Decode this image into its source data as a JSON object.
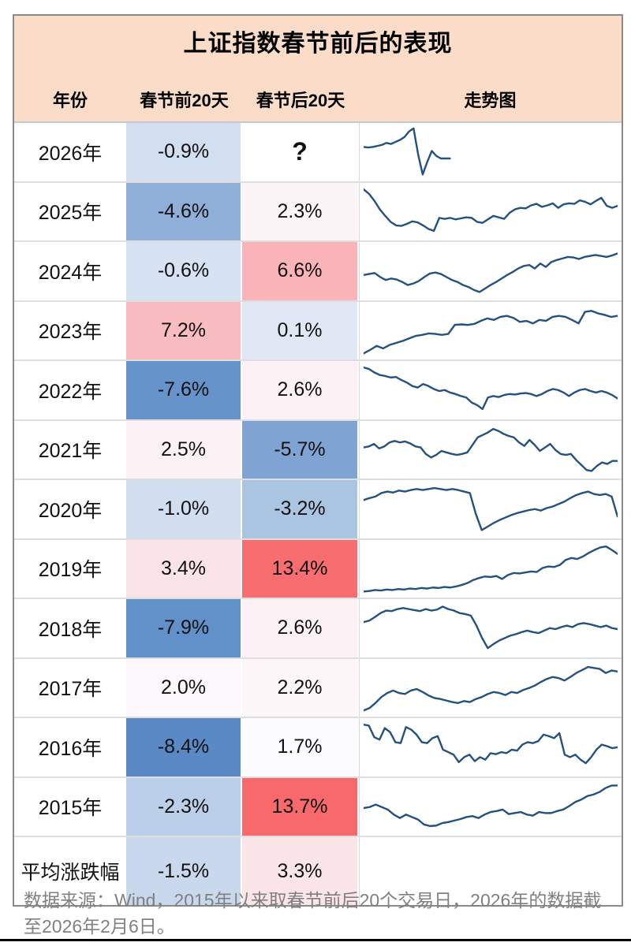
{
  "title": "上证指数春节前后的表现",
  "columns": {
    "year": "年份",
    "pre": "春节前20天",
    "post": "春节后20天",
    "chart": "走势图"
  },
  "rows": [
    {
      "year": "2026年",
      "pre": "-0.9%",
      "post": "?",
      "pre_bg": "#D2DFF0",
      "post_bg": "#FFFFFF"
    },
    {
      "year": "2025年",
      "pre": "-4.6%",
      "post": "2.3%",
      "pre_bg": "#8FAFD9",
      "post_bg": "#FCF5F8"
    },
    {
      "year": "2024年",
      "pre": "-0.6%",
      "post": "6.6%",
      "pre_bg": "#D7E2F2",
      "post_bg": "#FAB3B8"
    },
    {
      "year": "2023年",
      "pre": "7.2%",
      "post": "0.1%",
      "pre_bg": "#F9BCC0",
      "post_bg": "#E0E8F5"
    },
    {
      "year": "2022年",
      "pre": "-7.6%",
      "post": "2.6%",
      "pre_bg": "#6793CB",
      "post_bg": "#FCF1F4"
    },
    {
      "year": "2021年",
      "pre": "2.5%",
      "post": "-5.7%",
      "pre_bg": "#FCF2F5",
      "post_bg": "#7FA3D2"
    },
    {
      "year": "2020年",
      "pre": "-1.0%",
      "post": "-3.2%",
      "pre_bg": "#D1DEF0",
      "post_bg": "#A9C5E2"
    },
    {
      "year": "2019年",
      "pre": "3.4%",
      "post": "13.4%",
      "pre_bg": "#FBE4E8",
      "post_bg": "#F86D6F"
    },
    {
      "year": "2018年",
      "pre": "-7.9%",
      "post": "2.6%",
      "pre_bg": "#6290C9",
      "post_bg": "#FCF1F4"
    },
    {
      "year": "2017年",
      "pre": "2.0%",
      "post": "2.2%",
      "pre_bg": "#FCF8FB",
      "post_bg": "#FCF6F9"
    },
    {
      "year": "2016年",
      "pre": "-8.4%",
      "post": "1.7%",
      "pre_bg": "#5A8AC6",
      "post_bg": "#FCFCFF"
    },
    {
      "year": "2015年",
      "pre": "-2.3%",
      "post": "13.7%",
      "pre_bg": "#BCCFE8",
      "post_bg": "#F8696B"
    },
    {
      "year": "平均涨跌幅",
      "pre": "-1.5%",
      "post": "3.3%",
      "pre_bg": "#C9D8ED",
      "post_bg": "#FBE5E9"
    }
  ],
  "footer": "数据来源：Wind，2015年以来取春节前后20个交易日，2026年的数据截至2026年2月6日。",
  "colors": {
    "header_bg": "#FADCC9",
    "spark_line": "#24517D",
    "negative_max": "#5A8AC6",
    "positive_max": "#F8696B",
    "border_outer": "#8A8A8A",
    "row_divider": "#DEDEDE",
    "footer_text": "#808080"
  },
  "chart_data": {
    "type": "line",
    "title": "上证指数春节前后的表现",
    "categories": [
      "2026年",
      "2025年",
      "2024年",
      "2023年",
      "2022年",
      "2021年",
      "2020年",
      "2019年",
      "2018年",
      "2017年",
      "2016年",
      "2015年",
      "平均涨跌幅"
    ],
    "series": [
      {
        "name": "春节前20天",
        "values": [
          -0.9,
          -4.6,
          -0.6,
          7.2,
          -7.6,
          2.5,
          -1.0,
          3.4,
          -7.9,
          2.0,
          -8.4,
          -2.3,
          -1.5
        ]
      },
      {
        "name": "春节后20天",
        "values": [
          null,
          2.3,
          6.6,
          0.1,
          2.6,
          -5.7,
          -3.2,
          13.4,
          2.6,
          2.2,
          1.7,
          13.7,
          3.3
        ]
      }
    ],
    "legend_position": "none",
    "grid": false,
    "sparklines": [
      {
        "year": "2026年",
        "x_span": 0.34,
        "points": [
          60,
          59,
          60,
          62,
          64,
          68,
          66,
          70,
          74,
          80,
          91,
          97,
          45,
          5,
          30,
          52,
          42,
          37,
          37,
          37
        ]
      },
      {
        "year": "2025年",
        "x_span": 1,
        "points": [
          95,
          86,
          72,
          55,
          42,
          30,
          23,
          22,
          26,
          31,
          29,
          23,
          16,
          12,
          38,
          36,
          38,
          35,
          37,
          39,
          38,
          30,
          28,
          35,
          42,
          39,
          36,
          48,
          55,
          58,
          57,
          63,
          66,
          60,
          63,
          67,
          58,
          65,
          67,
          66,
          73,
          70,
          65,
          72,
          78,
          62,
          58,
          62
        ]
      },
      {
        "year": "2024年",
        "x_span": 1,
        "points": [
          42,
          44,
          46,
          38,
          32,
          35,
          33,
          28,
          22,
          25,
          30,
          38,
          45,
          47,
          44,
          38,
          32,
          28,
          22,
          18,
          12,
          8,
          15,
          22,
          28,
          35,
          42,
          48,
          55,
          60,
          62,
          55,
          65,
          58,
          68,
          72,
          75,
          78,
          77,
          74,
          78,
          80,
          82,
          80,
          78,
          81,
          85
        ]
      },
      {
        "year": "2023年",
        "x_span": 1,
        "points": [
          5,
          12,
          20,
          15,
          22,
          26,
          30,
          35,
          40,
          42,
          45,
          44,
          42,
          44,
          62,
          63,
          62,
          64,
          70,
          75,
          72,
          78,
          80,
          76,
          68,
          70,
          65,
          72,
          70,
          78,
          80,
          78,
          72,
          65,
          88,
          90,
          85,
          82,
          78,
          80
        ]
      },
      {
        "year": "2022年",
        "x_span": 1,
        "points": [
          95,
          92,
          85,
          80,
          78,
          75,
          76,
          70,
          65,
          58,
          55,
          62,
          58,
          52,
          48,
          50,
          45,
          42,
          38,
          35,
          25,
          20,
          12,
          35,
          38,
          36,
          40,
          42,
          41,
          43,
          44,
          42,
          38,
          42,
          48,
          52,
          50,
          45,
          38,
          45,
          50,
          52,
          48,
          45,
          48,
          45,
          40,
          33
        ]
      },
      {
        "year": "2021年",
        "x_span": 1,
        "points": [
          55,
          57,
          62,
          53,
          57,
          65,
          68,
          65,
          67,
          63,
          57,
          55,
          42,
          35,
          40,
          48,
          45,
          42,
          40,
          42,
          45,
          60,
          75,
          80,
          85,
          92,
          88,
          82,
          78,
          75,
          65,
          58,
          70,
          60,
          48,
          55,
          62,
          50,
          42,
          40,
          42,
          30,
          20,
          10,
          8,
          18,
          25,
          22,
          28,
          28
        ]
      },
      {
        "year": "2020年",
        "x_span": 1,
        "points": [
          68,
          72,
          75,
          82,
          85,
          83,
          87,
          85,
          88,
          90,
          88,
          90,
          92,
          90,
          88,
          90,
          88,
          85,
          82,
          40,
          8,
          15,
          22,
          28,
          33,
          38,
          42,
          45,
          48,
          50,
          47,
          52,
          55,
          60,
          65,
          72,
          78,
          82,
          85,
          80,
          78,
          80,
          75,
          35
        ]
      },
      {
        "year": "2019年",
        "x_span": 1,
        "points": [
          5,
          6,
          8,
          7,
          9,
          8,
          10,
          9,
          11,
          10,
          12,
          11,
          13,
          12,
          14,
          13,
          15,
          18,
          22,
          28,
          32,
          35,
          34,
          36,
          30,
          38,
          42,
          41,
          43,
          45,
          44,
          52,
          55,
          54,
          58,
          68,
          72,
          70,
          75,
          82,
          88,
          93,
          95,
          88,
          80
        ]
      },
      {
        "year": "2018年",
        "x_span": 1,
        "points": [
          62,
          65,
          72,
          80,
          85,
          84,
          88,
          90,
          88,
          86,
          84,
          88,
          85,
          87,
          93,
          88,
          85,
          80,
          78,
          75,
          55,
          30,
          10,
          18,
          25,
          30,
          35,
          38,
          42,
          45,
          42,
          40,
          45,
          50,
          48,
          52,
          55,
          52,
          58,
          60,
          58,
          55,
          52,
          55,
          50,
          48
        ]
      },
      {
        "year": "2017年",
        "x_span": 1,
        "points": [
          5,
          10,
          20,
          32,
          40,
          45,
          40,
          38,
          45,
          48,
          42,
          35,
          30,
          28,
          25,
          22,
          20,
          24,
          22,
          28,
          32,
          38,
          42,
          40,
          36,
          42,
          40,
          46,
          50,
          55,
          62,
          68,
          72,
          70,
          65,
          72,
          80,
          86,
          92,
          90,
          88,
          80,
          85,
          83
        ]
      },
      {
        "year": "2016年",
        "x_span": 1,
        "points": [
          95,
          93,
          70,
          65,
          88,
          80,
          60,
          58,
          90,
          85,
          75,
          60,
          58,
          68,
          72,
          45,
          40,
          35,
          20,
          30,
          35,
          22,
          30,
          25,
          38,
          36,
          40,
          38,
          45,
          43,
          55,
          60,
          58,
          62,
          75,
          72,
          68,
          78,
          35,
          30,
          35,
          25,
          18,
          30,
          45,
          55,
          52,
          48,
          50
        ]
      },
      {
        "year": "2015年",
        "x_span": 1,
        "points": [
          48,
          50,
          55,
          50,
          45,
          35,
          28,
          35,
          30,
          25,
          15,
          12,
          13,
          18,
          20,
          23,
          26,
          30,
          32,
          28,
          35,
          40,
          42,
          45,
          36,
          38,
          40,
          35,
          33,
          40,
          38,
          38,
          42,
          45,
          52,
          60,
          65,
          72,
          75,
          80,
          88,
          93,
          93
        ]
      },
      {
        "year": "平均涨跌幅",
        "x_span": 1,
        "points": null
      }
    ]
  }
}
